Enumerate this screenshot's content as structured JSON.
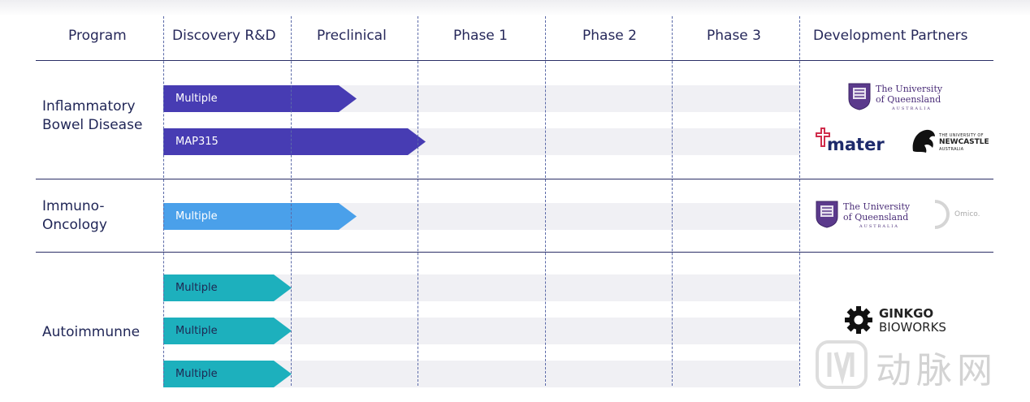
{
  "headers": {
    "program": "Program",
    "discovery": "Discovery R&D",
    "preclinical": "Preclinical",
    "phase1": "Phase 1",
    "phase2": "Phase 2",
    "phase3": "Phase 3",
    "partners": "Development Partners"
  },
  "programs": {
    "ibd": "Inflammatory Bowel Disease",
    "immuno": "Immuno-Oncology",
    "auto": "Autoimmunne"
  },
  "bars": {
    "ibd_1": "Multiple",
    "ibd_2": "MAP315",
    "immuno_1": "Multiple",
    "auto_1": "Multiple",
    "auto_2": "Multiple",
    "auto_3": "Multiple"
  },
  "partners": {
    "uq_line1": "The University",
    "uq_line2": "of Queensland",
    "uq_sub": "AUSTRALIA",
    "mater": "mater",
    "newcastle_small": "THE UNIVERSITY OF",
    "newcastle": "NEWCASTLE",
    "newcastle_sub": "AUSTRALIA",
    "omico": "Omico.",
    "ginkgo_line1": "GINKGO",
    "ginkgo_line2": "BIOWORKS"
  },
  "watermark": "动脉网",
  "colors": {
    "purple": "#473cb3",
    "blue": "#4aa0ea",
    "teal": "#1db0bd",
    "lane": "#f0f0f4"
  }
}
